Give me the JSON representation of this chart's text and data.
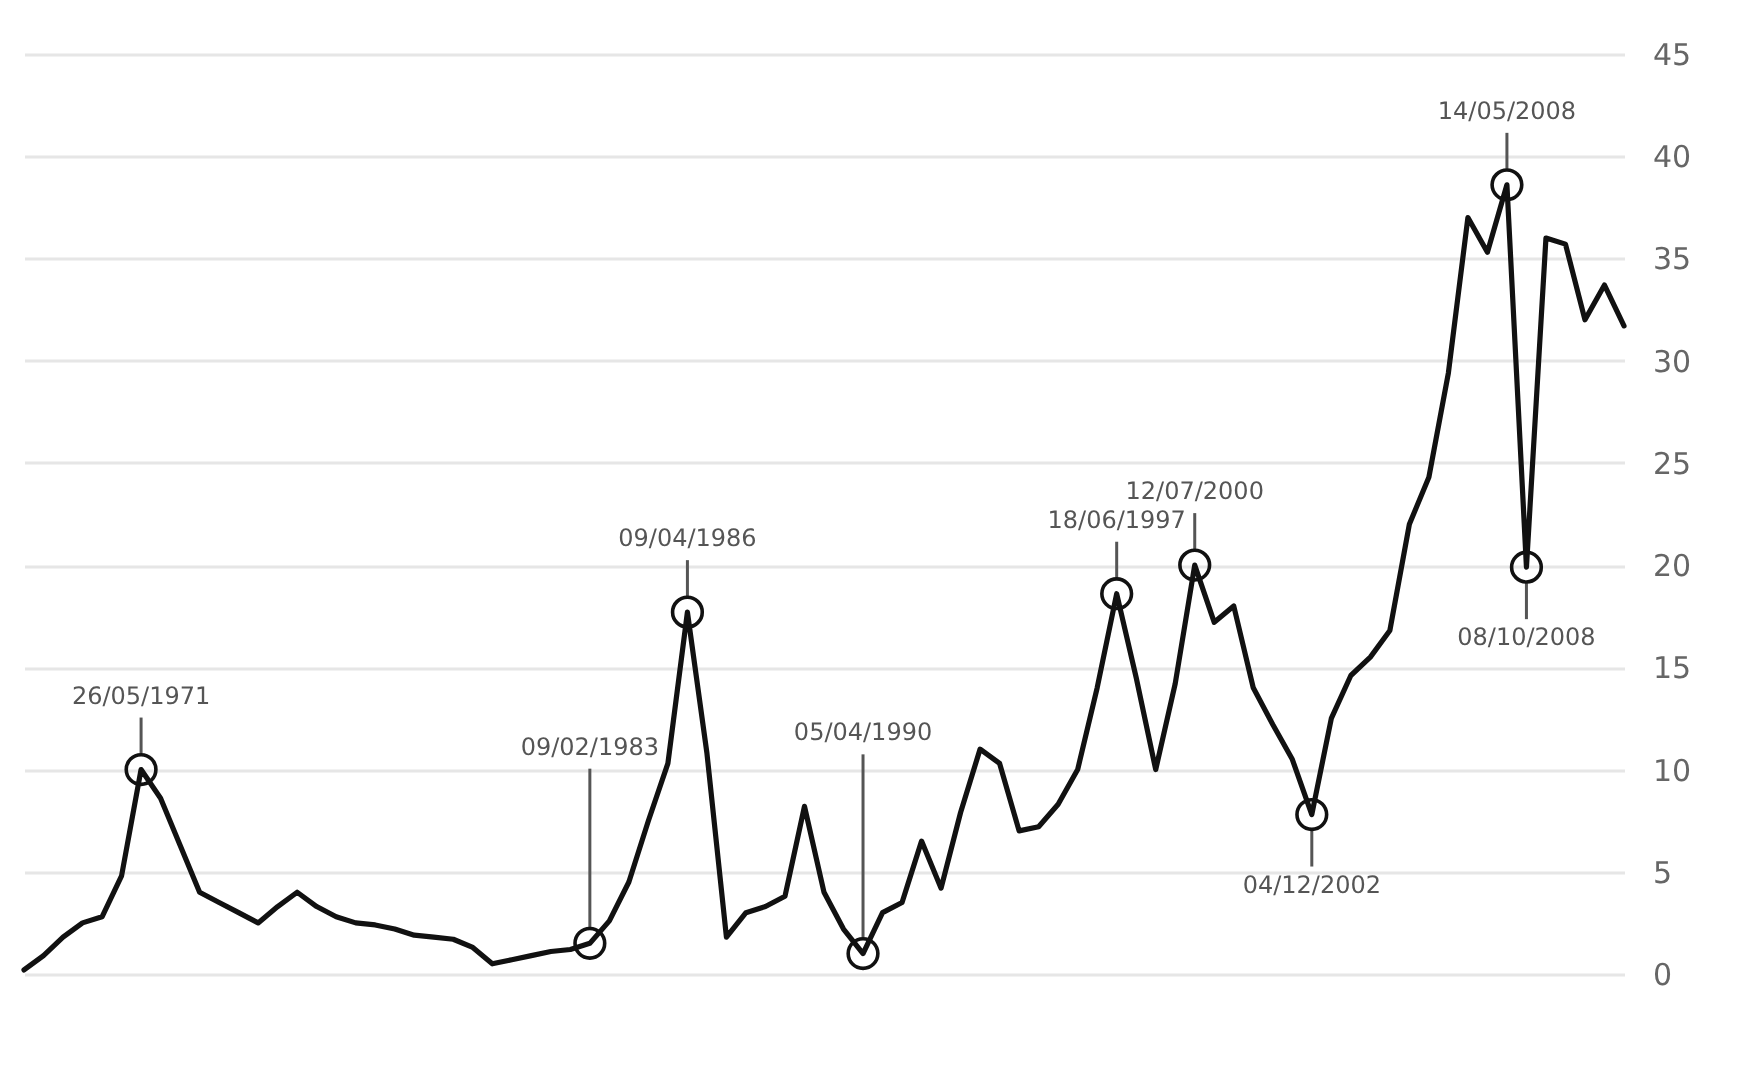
{
  "chart_data": {
    "type": "line",
    "categories": [
      null,
      null,
      null,
      null,
      null,
      null,
      null,
      null,
      null,
      null,
      null,
      null,
      null,
      null,
      null,
      null,
      null,
      null,
      null,
      null,
      null,
      null,
      null,
      null,
      null,
      null,
      null,
      null,
      null,
      null,
      null,
      null,
      null,
      null,
      null,
      null,
      null,
      null,
      null,
      null,
      null,
      null,
      null,
      null,
      null,
      null,
      null,
      null,
      null,
      null,
      null,
      null,
      null,
      null,
      null,
      null,
      null,
      null,
      null,
      null,
      null,
      null,
      null,
      null,
      null,
      null,
      null,
      null,
      null,
      null,
      null,
      null,
      null,
      null,
      null,
      null,
      null,
      null,
      null,
      null,
      null,
      null,
      null
    ],
    "series": [
      {
        "color": "#111111",
        "values": [
          0.2,
          0.9,
          1.8,
          2.5,
          2.8,
          4.8,
          10,
          8.6,
          6.3,
          4,
          3.5,
          3.0,
          2.5,
          3.3,
          4,
          3.3,
          2.8,
          2.5,
          2.4,
          2.2,
          1.9,
          1.8,
          1.7,
          1.3,
          0.5,
          0.7,
          0.9,
          1.1,
          1.2,
          1.5,
          2.6,
          4.5,
          7.5,
          10.3,
          17.7,
          10.8,
          1.8,
          3,
          3.3,
          3.8,
          8.2,
          4,
          2.2,
          1,
          3,
          3.5,
          6.5,
          4.2,
          7.9,
          11,
          10.3,
          7,
          7.2,
          8.3,
          10,
          14,
          18.6,
          14.5,
          10,
          14.2,
          20,
          17.2,
          18,
          14,
          12.2,
          10.5,
          7.8,
          12.5,
          14.6,
          15.5,
          16.8,
          22,
          24.3,
          29.4,
          37,
          35.3,
          38.6,
          19.9,
          36,
          35.7,
          32,
          33.7,
          31.7
        ]
      }
    ],
    "ylim": [
      0,
      45
    ],
    "yticks": [
      0,
      5,
      10,
      15,
      20,
      25,
      30,
      35,
      40,
      45
    ],
    "grid": "y",
    "tick_labels": "y",
    "annotations": [
      {
        "text": "26/05/1971",
        "y": 10
      },
      {
        "text": "09/02/1983",
        "y": 1.5
      },
      {
        "text": "09/04/1986",
        "y": 17.7
      },
      {
        "text": "05/04/1990",
        "y": 1
      },
      {
        "text": "18/06/1997",
        "y": 18.6
      },
      {
        "text": "12/07/2000",
        "y": 20
      },
      {
        "text": "04/12/2002",
        "y": 7.8
      },
      {
        "text": "14/05/2008",
        "y": 38.6
      },
      {
        "text": "08/10/2008",
        "y": 19.9
      }
    ]
  }
}
